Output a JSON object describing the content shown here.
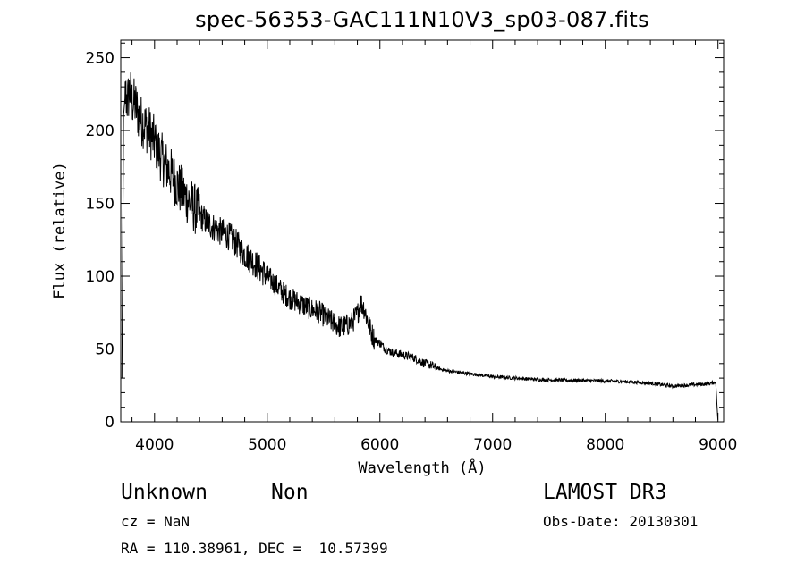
{
  "chart_data": {
    "type": "line",
    "title": "spec-56353-GAC111N10V3_sp03-087.fits",
    "xlabel": "Wavelength (Å)",
    "ylabel": "Flux (relative)",
    "xlim": [
      3700,
      9050
    ],
    "ylim": [
      0,
      262
    ],
    "x_ticks": [
      4000,
      5000,
      6000,
      7000,
      8000,
      9000
    ],
    "y_ticks": [
      0,
      50,
      100,
      150,
      200,
      250
    ],
    "x_tick_labels": [
      "4000",
      "5000",
      "6000",
      "7000",
      "8000",
      "9000"
    ],
    "y_tick_labels": [
      "0",
      "50",
      "100",
      "150",
      "200",
      "250"
    ],
    "series": [
      {
        "name": "flux",
        "x": [
          3710,
          3725,
          3740,
          3760,
          3780,
          3800,
          3830,
          3860,
          3900,
          3950,
          4000,
          4050,
          4100,
          4150,
          4200,
          4250,
          4300,
          4350,
          4400,
          4450,
          4500,
          4550,
          4600,
          4650,
          4700,
          4750,
          4800,
          4850,
          4900,
          4950,
          5000,
          5050,
          5100,
          5150,
          5200,
          5250,
          5300,
          5350,
          5400,
          5450,
          5500,
          5550,
          5600,
          5650,
          5700,
          5750,
          5800,
          5830,
          5860,
          5890,
          5920,
          5950,
          6000,
          6050,
          6100,
          6150,
          6200,
          6250,
          6300,
          6350,
          6400,
          6450,
          6500,
          6600,
          6700,
          6800,
          6900,
          7000,
          7100,
          7200,
          7300,
          7400,
          7500,
          7600,
          7700,
          7800,
          7900,
          8000,
          8100,
          8200,
          8300,
          8400,
          8500,
          8600,
          8700,
          8800,
          8900,
          8980,
          9000
        ],
        "y": [
          30,
          210,
          225,
          220,
          228,
          220,
          218,
          210,
          205,
          200,
          192,
          183,
          176,
          170,
          163,
          157,
          152,
          147,
          142,
          138,
          135,
          132,
          130,
          128,
          125,
          120,
          115,
          112,
          108,
          104,
          100,
          96,
          92,
          88,
          85,
          83,
          81,
          79,
          77,
          76,
          73,
          70,
          67,
          65,
          66,
          68,
          74,
          82,
          78,
          70,
          62,
          57,
          54,
          50,
          48,
          47,
          46,
          45,
          44,
          42,
          40,
          39,
          37,
          35,
          34,
          33,
          32,
          31,
          30.5,
          30,
          29.5,
          29,
          28.8,
          28.6,
          28.5,
          28.4,
          28.2,
          28,
          27.8,
          27.5,
          27,
          26.5,
          25.5,
          24.5,
          25,
          25.5,
          26,
          27,
          0
        ]
      }
    ]
  },
  "info": {
    "object_class": "Unknown",
    "subclass": "Non",
    "survey": "LAMOST DR3",
    "redshift_line": "cz = NaN",
    "obs_date_line": "Obs-Date: 20130301",
    "coords_line": "RA = 110.38961, DEC =  10.57399"
  }
}
